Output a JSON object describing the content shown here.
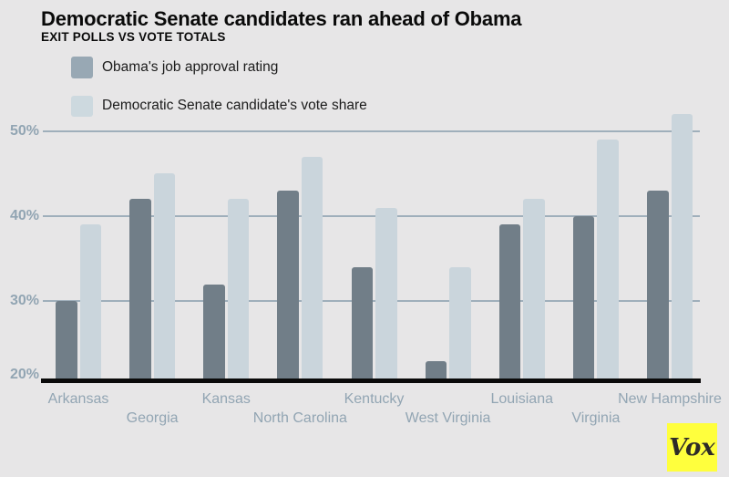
{
  "header": {
    "title": "Democratic Senate candidates ran ahead of Obama",
    "subtitle": "EXIT POLLS VS VOTE TOTALS"
  },
  "branding": {
    "logo_text": "Vox"
  },
  "colors": {
    "background": "#E7E6E7",
    "bar_dark": "#717E88",
    "bar_light": "#CAD5DC",
    "legend_swatch_dark": "#98A8B4",
    "legend_swatch_light": "#CDD9DF",
    "gridline": "#9FAFBB",
    "axis_label": "#92A5B3",
    "baseline": "#0A0A0A",
    "logo_background": "#FFFF3D",
    "logo_text_color": "#2E2B28"
  },
  "chart_data": {
    "type": "bar",
    "title": "Democratic Senate candidates ran ahead of Obama",
    "subtitle": "EXIT POLLS VS VOTE TOTALS",
    "categories": [
      "Arkansas",
      "Georgia",
      "Kansas",
      "North Carolina",
      "Kentucky",
      "West Virginia",
      "Louisiana",
      "Virginia",
      "New Hampshire"
    ],
    "series": [
      {
        "name": "Obama's job approval rating",
        "values": [
          30,
          42,
          32,
          43,
          34,
          23,
          39,
          40,
          43
        ]
      },
      {
        "name": "Democratic Senate candidate's vote share",
        "values": [
          39,
          45,
          42,
          47,
          41,
          34,
          42,
          49,
          52
        ]
      }
    ],
    "xlabel": "",
    "ylabel": "",
    "ylim": [
      20,
      52
    ],
    "yticks": [
      {
        "label": "20%",
        "value": 20
      },
      {
        "label": "30%",
        "value": 30
      },
      {
        "label": "40%",
        "value": 40
      },
      {
        "label": "50%",
        "value": 50
      }
    ],
    "grid": "horizontal",
    "legend_position": "top-left",
    "unit": "%"
  }
}
